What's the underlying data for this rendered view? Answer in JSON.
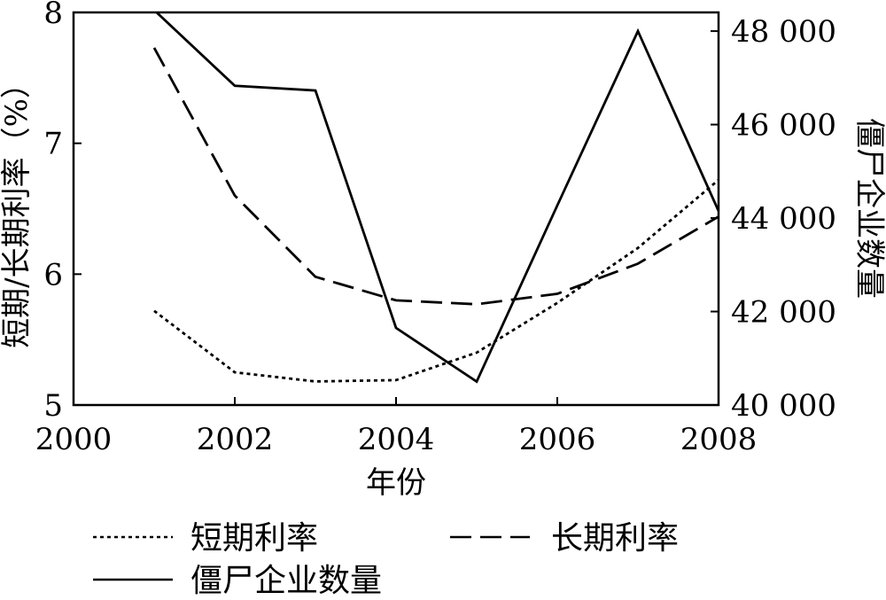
{
  "chart_data": {
    "type": "line",
    "xlabel": "年份",
    "ylabel_left": "短期/长期利率（%）",
    "ylabel_right": "僵尸企业数量",
    "xlim": [
      2000,
      2008
    ],
    "ylim_left": [
      5,
      8
    ],
    "ylim_right": [
      40000,
      48400
    ],
    "x_ticks": [
      "2000",
      "2002",
      "2004",
      "2006",
      "2008"
    ],
    "x_tick_values": [
      2000,
      2002,
      2004,
      2006,
      2008
    ],
    "y_left_ticks": [
      "5",
      "6",
      "7",
      "8"
    ],
    "y_left_tick_values": [
      5,
      6,
      7,
      8
    ],
    "y_right_ticks": [
      "40 000",
      "42 000",
      "44 000",
      "46 000",
      "48 000"
    ],
    "y_right_tick_values": [
      40000,
      42000,
      44000,
      46000,
      48000
    ],
    "x": [
      2001,
      2002,
      2003,
      2004,
      2005,
      2006,
      2007,
      2008
    ],
    "series": [
      {
        "name": "短期利率",
        "axis": "left",
        "style": "dotted",
        "x": [
          2001,
          2002,
          2003,
          2004,
          2005,
          2006,
          2007,
          2008
        ],
        "values": [
          5.72,
          5.25,
          5.18,
          5.19,
          5.4,
          5.78,
          6.2,
          6.72
        ]
      },
      {
        "name": "长期利率",
        "axis": "left",
        "style": "dashed",
        "x": [
          2001,
          2002,
          2003,
          2004,
          2005,
          2006,
          2007,
          2008
        ],
        "values": [
          7.73,
          6.6,
          5.98,
          5.8,
          5.77,
          5.85,
          6.08,
          6.44
        ]
      },
      {
        "name": "僵尸企业数量",
        "axis": "right",
        "style": "solid",
        "x": [
          2001,
          2002,
          2003,
          2004,
          2005,
          2006,
          2007,
          2008
        ],
        "values": [
          48450,
          46830,
          46730,
          41650,
          40500,
          44270,
          48000,
          44150
        ]
      }
    ],
    "grid": false,
    "legend_position": "bottom"
  },
  "colors": {
    "line": "#000000",
    "background": "#ffffff"
  }
}
